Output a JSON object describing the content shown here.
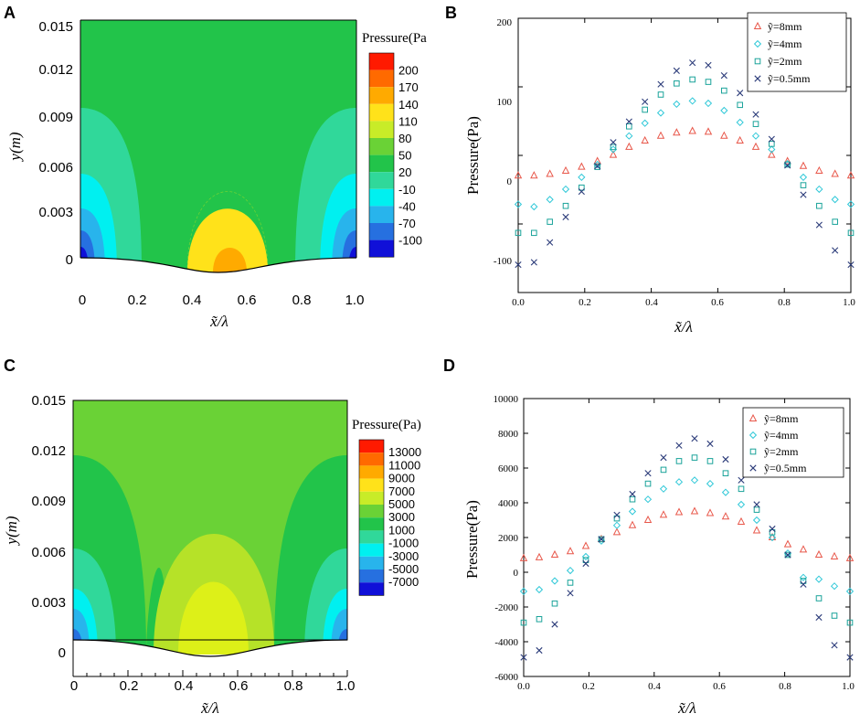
{
  "figure": {
    "panel_labels": [
      "A",
      "B",
      "C",
      "D"
    ],
    "legend_labels": [
      "ỹ=8mm",
      "ỹ=4mm",
      "ỹ=2mm",
      "ỹ=0.5mm"
    ],
    "series_colors": [
      "#e8574a",
      "#2fc8d8",
      "#1aa39a",
      "#2c3c7a"
    ],
    "series_markers": [
      "triangle",
      "diamond",
      "square",
      "cross"
    ]
  },
  "chart_data": [
    {
      "id": "A",
      "type": "heatmap",
      "title": "",
      "xlabel": "x̃/λ",
      "ylabel": "y(m)",
      "xlim": [
        0,
        1.0
      ],
      "ylim": [
        -0.0015,
        0.015
      ],
      "xticks": [
        "0",
        "0.2",
        "0.4",
        "0.6",
        "0.8",
        "1.0"
      ],
      "yticks": [
        "0",
        "0.003",
        "0.006",
        "0.009",
        "0.012",
        "0.015"
      ],
      "colorbar_title": "Pressure(Pa",
      "colorbar_levels": [
        "200",
        "170",
        "140",
        "110",
        "80",
        "50",
        "20",
        "-10",
        "-40",
        "-70",
        "-100"
      ],
      "colorbar_colors": [
        "#ff1a00",
        "#ff6a00",
        "#ffaa00",
        "#ffe21a",
        "#c8ec28",
        "#6ad236",
        "#22c44a",
        "#30d89a",
        "#00f0f0",
        "#28b4ec",
        "#2670e0",
        "#1010d8"
      ]
    },
    {
      "id": "B",
      "type": "scatter",
      "title": "",
      "xlabel": "x̃/λ",
      "ylabel": "Pressure(Pa)",
      "xlim": [
        0,
        1.0
      ],
      "ylim": [
        -135,
        210
      ],
      "xticks": [
        "0.0",
        "0.2",
        "0.4",
        "0.6",
        "0.8",
        "1.0"
      ],
      "yticks": [
        "-100",
        "0",
        "100",
        "200"
      ],
      "x": [
        0.0,
        0.0476,
        0.0952,
        0.1429,
        0.1905,
        0.2381,
        0.2857,
        0.3333,
        0.381,
        0.4286,
        0.4762,
        0.5238,
        0.5714,
        0.619,
        0.6667,
        0.7143,
        0.7619,
        0.8095,
        0.8571,
        0.9048,
        0.9524,
        1.0
      ],
      "series": [
        {
          "name": "ỹ=8mm",
          "values": [
            12,
            12,
            14,
            18,
            23,
            30,
            38,
            48,
            56,
            62,
            66,
            68,
            67,
            62,
            56,
            48,
            38,
            30,
            24,
            18,
            14,
            12
          ]
        },
        {
          "name": "ỹ=4mm",
          "values": [
            -24,
            -27,
            -18,
            -5,
            10,
            26,
            45,
            62,
            78,
            91,
            102,
            106,
            103,
            94,
            79,
            62,
            45,
            27,
            10,
            -5,
            -18,
            -24
          ]
        },
        {
          "name": "ỹ=2mm",
          "values": [
            -60,
            -60,
            -46,
            -26,
            -3,
            23,
            48,
            74,
            95,
            114,
            128,
            133,
            130,
            119,
            101,
            77,
            52,
            26,
            0,
            -26,
            -46,
            -60
          ]
        },
        {
          "name": "ỹ=0.5mm",
          "values": [
            -100,
            -97,
            -72,
            -40,
            -8,
            24,
            54,
            80,
            105,
            127,
            144,
            154,
            151,
            138,
            116,
            89,
            58,
            25,
            -12,
            -50,
            -82,
            -100
          ]
        }
      ]
    },
    {
      "id": "C",
      "type": "heatmap",
      "title": "",
      "xlabel": "x̃/λ",
      "ylabel": "y(m)",
      "xlim": [
        0,
        1.0
      ],
      "ylim": [
        -0.0015,
        0.015
      ],
      "xticks": [
        "0",
        "0.2",
        "0.4",
        "0.6",
        "0.8",
        "1.0"
      ],
      "yticks": [
        "0",
        "0.003",
        "0.006",
        "0.009",
        "0.012",
        "0.015"
      ],
      "colorbar_title": "Pressure(Pa)",
      "colorbar_levels": [
        "13000",
        "11000",
        "9000",
        "7000",
        "5000",
        "3000",
        "1000",
        "-1000",
        "-3000",
        "-5000",
        "-7000"
      ],
      "colorbar_colors": [
        "#ff1a00",
        "#ff6a00",
        "#ffaa00",
        "#ffe21a",
        "#c8ec28",
        "#6ad236",
        "#22c44a",
        "#30d89a",
        "#00f0f0",
        "#28b4ec",
        "#2670e0",
        "#1010d8"
      ]
    },
    {
      "id": "D",
      "type": "scatter",
      "title": "",
      "xlabel": "x̃/λ",
      "ylabel": "Pressure(Pa)",
      "xlim": [
        0,
        1.0
      ],
      "ylim": [
        -6000,
        10000
      ],
      "xticks": [
        "0.0",
        "0.2",
        "0.4",
        "0.6",
        "0.8",
        "1.0"
      ],
      "yticks": [
        "-6000",
        "-4000",
        "-2000",
        "0",
        "2000",
        "4000",
        "6000",
        "8000",
        "10000"
      ],
      "x": [
        0.0,
        0.0476,
        0.0952,
        0.1429,
        0.1905,
        0.2381,
        0.2857,
        0.3333,
        0.381,
        0.4286,
        0.4762,
        0.5238,
        0.5714,
        0.619,
        0.6667,
        0.7143,
        0.7619,
        0.8095,
        0.8571,
        0.9048,
        0.9524,
        1.0
      ],
      "series": [
        {
          "name": "ỹ=8mm",
          "values": [
            800,
            850,
            1000,
            1200,
            1500,
            1900,
            2300,
            2700,
            3000,
            3300,
            3450,
            3500,
            3400,
            3200,
            2900,
            2400,
            2000,
            1600,
            1300,
            1000,
            900,
            800
          ]
        },
        {
          "name": "ỹ=4mm",
          "values": [
            -1100,
            -1000,
            -500,
            100,
            900,
            1800,
            2700,
            3500,
            4200,
            4800,
            5200,
            5300,
            5100,
            4600,
            3900,
            3000,
            2000,
            1100,
            -300,
            -400,
            -800,
            -1100
          ]
        },
        {
          "name": "ỹ=2mm",
          "values": [
            -2900,
            -2700,
            -1800,
            -600,
            700,
            1900,
            3100,
            4200,
            5100,
            5900,
            6400,
            6600,
            6400,
            5700,
            4800,
            3600,
            2300,
            1000,
            -500,
            -1500,
            -2500,
            -2900
          ]
        },
        {
          "name": "ỹ=0.5mm",
          "values": [
            -4900,
            -4500,
            -3000,
            -1200,
            500,
            1900,
            3300,
            4500,
            5700,
            6600,
            7300,
            7700,
            7400,
            6500,
            5300,
            3900,
            2500,
            1000,
            -700,
            -2600,
            -4200,
            -4900
          ]
        }
      ]
    }
  ]
}
